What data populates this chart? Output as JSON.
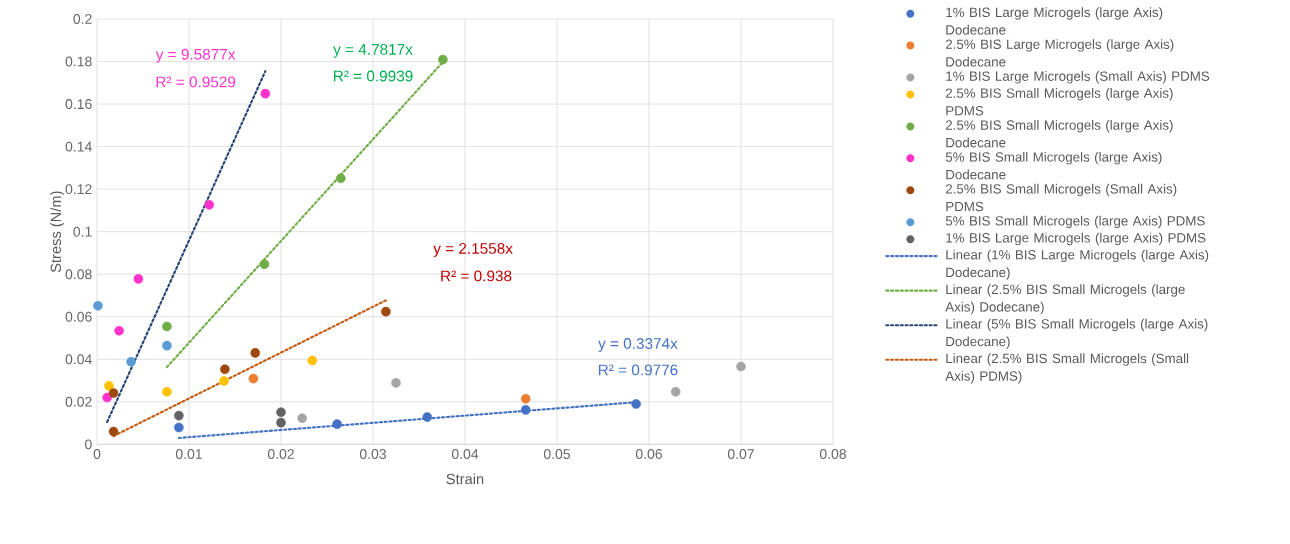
{
  "chart_data": {
    "type": "scatter",
    "xlabel": "Strain",
    "ylabel": "Stress (N/m)",
    "xlim": [
      0,
      0.08
    ],
    "xticks": [
      0,
      0.01,
      0.02,
      0.03,
      0.04,
      0.05,
      0.06,
      0.07,
      0.08
    ],
    "ylim": [
      0,
      0.2
    ],
    "yticks": [
      0,
      0.02,
      0.04,
      0.06,
      0.08,
      0.1,
      0.12,
      0.14,
      0.16,
      0.18,
      0.2
    ],
    "grid": true,
    "legend": "right",
    "series": [
      {
        "name": "1% BIS Large Microgels (large Axis) Dodecane",
        "marker": "circle",
        "color": "#4472c4",
        "x": [
          0.0089,
          0.0261,
          0.0359,
          0.0466,
          0.0586
        ],
        "values": [
          0.0079,
          0.0095,
          0.0128,
          0.0162,
          0.019
        ]
      },
      {
        "name": "2.5% BIS Large Microgels (large Axis) Dodecane",
        "marker": "circle",
        "color": "#ed7d31",
        "x": [
          0.017,
          0.0466
        ],
        "values": [
          0.0309,
          0.0214
        ]
      },
      {
        "name": "1% BIS Large Microgels (Small Axis) PDMS",
        "marker": "circle",
        "color": "#a5a5a5",
        "x": [
          0.0223,
          0.0325,
          0.0629,
          0.07
        ],
        "values": [
          0.0123,
          0.0289,
          0.0247,
          0.0366
        ]
      },
      {
        "name": "2.5% BIS Small Microgels (large Axis) PDMS",
        "marker": "circle",
        "color": "#ffc000",
        "x": [
          0.0013,
          0.0076,
          0.0138,
          0.0234
        ],
        "values": [
          0.0275,
          0.0247,
          0.0298,
          0.0394
        ]
      },
      {
        "name": "2.5% BIS Small Microgels (large Axis) Dodecane",
        "marker": "circle",
        "color": "#70ad47",
        "x": [
          0.0076,
          0.0182,
          0.0265,
          0.0376
        ],
        "values": [
          0.0554,
          0.0847,
          0.1251,
          0.1809
        ]
      },
      {
        "name": "5% BIS Small Microgels (large Axis) Dodecane",
        "marker": "circle",
        "color": "#ff33cc",
        "x": [
          0.0011,
          0.0024,
          0.0045,
          0.0122,
          0.0183
        ],
        "values": [
          0.022,
          0.0534,
          0.0778,
          0.1126,
          0.1649
        ]
      },
      {
        "name": "2.5% BIS Small Microgels (Small Axis) PDMS",
        "marker": "circle",
        "color": "#9e480e",
        "x": [
          0.0018,
          0.0018,
          0.0139,
          0.0172,
          0.0314
        ],
        "values": [
          0.006,
          0.0241,
          0.0353,
          0.043,
          0.0624
        ]
      },
      {
        "name": "5% BIS Small Microgels (large Axis) PDMS",
        "marker": "circle",
        "color": "#5b9bd5",
        "x": [
          0.0001,
          0.0037,
          0.0076
        ],
        "values": [
          0.0652,
          0.0388,
          0.0464
        ]
      },
      {
        "name": "1% BIS Large Microgels (large Axis) PDMS",
        "marker": "circle",
        "color": "#636363",
        "x": [
          0.0089,
          0.02,
          0.02
        ],
        "values": [
          0.0135,
          0.0151,
          0.0102
        ]
      },
      {
        "name": "Linear (1% BIS Large Microgels (large Axis) Dodecane)",
        "type": "line",
        "marker": "none",
        "line_style": "dotted",
        "color": "#4472c4",
        "x": [
          0.0089,
          0.0586
        ],
        "values": [
          0.003,
          0.0198
        ]
      },
      {
        "name": "Linear (2.5% BIS Small Microgels (large Axis) Dodecane)",
        "type": "line",
        "marker": "none",
        "line_style": "dotted",
        "color": "#70ad47",
        "x": [
          0.0076,
          0.0376
        ],
        "values": [
          0.0363,
          0.1798
        ]
      },
      {
        "name": "Linear (5% BIS Small Microgels (large Axis) Dodecane)",
        "type": "line",
        "marker": "none",
        "line_style": "dotted",
        "color": "#264478",
        "x": [
          0.0011,
          0.0183
        ],
        "values": [
          0.0105,
          0.1755
        ]
      },
      {
        "name": "Linear (2.5% BIS Small Microgels (Small Axis) PDMS)",
        "type": "line",
        "marker": "none",
        "line_style": "dotted",
        "color": "#c55a11",
        "x": [
          0.0018,
          0.0314
        ],
        "values": [
          0.0039,
          0.0677
        ]
      }
    ],
    "annotations": [
      "y = 9.5877x",
      "R² = 0.9529",
      "y = 4.7817x",
      "R² = 0.9939",
      "y = 2.1558x",
      "R² = 0.938",
      "y = 0.3374x",
      "R² = 0.9776"
    ]
  }
}
